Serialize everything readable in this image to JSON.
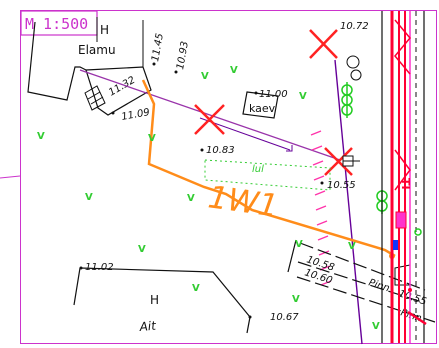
{
  "scale_label": "M 1:500",
  "building_label": "Elamu",
  "building_letter": "H",
  "outbuilding_letter": "H",
  "outbuilding_label": "Ait",
  "well_label": "kaev",
  "route_label": "1W1",
  "structure_label": "Pinn",
  "water_mark": "TI",
  "elevations": {
    "e1": "10.72",
    "e2": "11.45",
    "e3": "10.93",
    "e4": "11.32",
    "e5": "11.09",
    "e6": "11.00",
    "e7": "10.83",
    "e8": "10.55",
    "e9": "10.58",
    "e10": "10.60",
    "e11": "11.02",
    "e12": "10.67",
    "e13": "10.55"
  },
  "colors": {
    "frame": "#cc33cc",
    "route": "#ff8c1a",
    "grass": "#33cc33",
    "cross": "#ff2222",
    "utility_red": "#ff0033",
    "utility_purple": "#660099",
    "tree": "#22cc22"
  }
}
